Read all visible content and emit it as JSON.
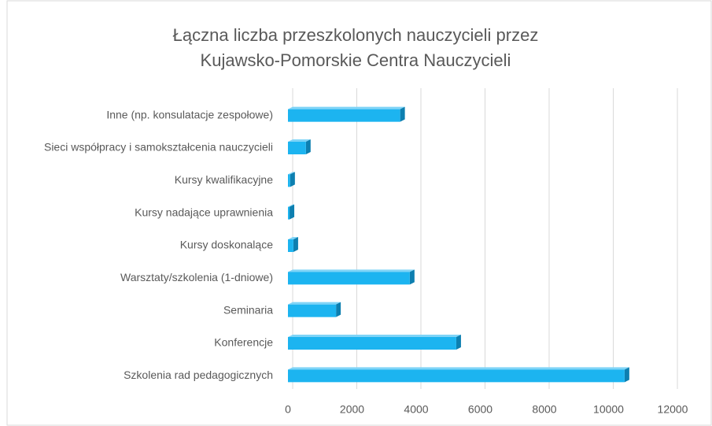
{
  "chart_data": {
    "type": "bar",
    "orientation": "horizontal",
    "title": [
      "Łączna liczba przeszkolonych  nauczycieli przez",
      "Kujawsko-Pomorskie Centra Nauczycieli"
    ],
    "categories": [
      "Inne (np. konsulatacje zespołowe)",
      "Sieci współpracy i samokształcenia nauczycieli",
      "Kursy kwalifikacyjne",
      "Kursy nadające uprawnienia",
      "Kursy doskonalące",
      "Warsztaty/szkolenia (1-dniowe)",
      "Seminaria",
      "Konferencje",
      "Szkolenia rad pedagogicznych"
    ],
    "values": [
      3500,
      560,
      70,
      50,
      170,
      3800,
      1500,
      5250,
      10500
    ],
    "color": "#1cb4f0",
    "xlim": [
      0,
      12000
    ],
    "xticks": [
      0,
      2000,
      4000,
      6000,
      8000,
      10000,
      12000
    ],
    "grid": true
  }
}
